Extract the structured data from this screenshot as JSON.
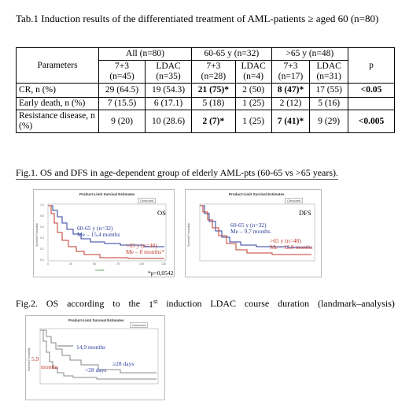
{
  "table": {
    "title": "Tab.1 Induction results of the differentiated treatment of AML-patients ≥ aged 60 (n=80)",
    "header": {
      "parameters": "Parameters",
      "all": "All (n=80)",
      "g1": "60-65 y (n=32)",
      "g2": ">65 y (n=48)",
      "p": "p"
    },
    "subheader": [
      {
        "l1": "7+3",
        "l2": "(n=45)"
      },
      {
        "l1": "LDAC",
        "l2": "(n=35)"
      },
      {
        "l1": "7+3",
        "l2": "(n=28)"
      },
      {
        "l1": "LDAC",
        "l2": "(n=4)"
      },
      {
        "l1": "7+3",
        "l2": "(n=17)"
      },
      {
        "l1": "LDAC",
        "l2": "(n=31)"
      }
    ],
    "rows": [
      {
        "label": "CR, n (%)",
        "cells": [
          "29 (64.5)",
          "19 (54.3)",
          "21 (75)*",
          "2 (50)",
          "8 (47)*",
          "17 (55)"
        ],
        "p": "<0.05"
      },
      {
        "label": "Early death, n (%)",
        "cells": [
          "7 (15.5)",
          "6 (17.1)",
          "5 (18)",
          "1 (25)",
          "2 (12)",
          "5 (16)"
        ],
        "p": ""
      },
      {
        "label": "Resistance disease, n (%)",
        "cells": [
          "9 (20)",
          "10 (28.6)",
          "2 (7)*",
          "1 (25)",
          "7 (41)*",
          "9 (29)"
        ],
        "p": "<0.005"
      }
    ]
  },
  "fig1": {
    "caption": "Fig.1. OS and DFS in age-dependent group of elderly AML-pts (60-65 vs >65 years).",
    "panel_title": "Product-Limit Survival Estimates",
    "legend": "Censored",
    "y_axis_label": "Survival Probability",
    "y_ticks": [
      "1.0",
      "0.8",
      "0.6",
      "0.4",
      "0.2",
      "0.0"
    ],
    "x_ticks": [
      "0",
      "25",
      "50",
      "75",
      "100",
      "125"
    ],
    "x_axis_label": "months",
    "os": {
      "label": "OS",
      "blue_l1": "60-65 y (n=32)",
      "blue_l2": "Me – 15,4 months",
      "red_l1": ">65 y (n=48)",
      "red_l2": "Me – 8 months*",
      "pnote": "*p=0,0542"
    },
    "dfs": {
      "label": "DFS",
      "blue_l1": "60-65 y (n=32)",
      "blue_l2": "Me – 9,7 months",
      "red_l1": ">65 y (n=48)",
      "red_l2": "Me – 12,8 months"
    }
  },
  "fig2": {
    "caption_start": "Fig.2.",
    "caption_w1": "OS",
    "caption_w2": "according",
    "caption_w3": "to",
    "caption_w4": "the",
    "caption_w5_num": "1",
    "caption_w5_sup": "st",
    "caption_w6": "induction",
    "caption_w7": "LDAC",
    "caption_w8": "course",
    "caption_w9": "duration",
    "caption_w10": "(landmark–analysis)",
    "panel_title": "Product-Limit Survival Estimates",
    "legend": "Censored",
    "y_axis_label": "Survival Probability",
    "y_ticks": [
      "1.0",
      "0.8",
      "0.6",
      "0.4",
      "0.2",
      "0.0"
    ],
    "x_ticks": [
      "0",
      "25",
      "50",
      "75",
      "100",
      "125"
    ],
    "ann_149": "14,9 months",
    "ann_59": "5,9",
    "ann_months": "months",
    "ann_lt28": "<28 days",
    "ann_ge28": "≥28 days"
  },
  "colors": {
    "blue": "#2c3e9c",
    "red": "#c0392b",
    "gray": "#888888"
  }
}
